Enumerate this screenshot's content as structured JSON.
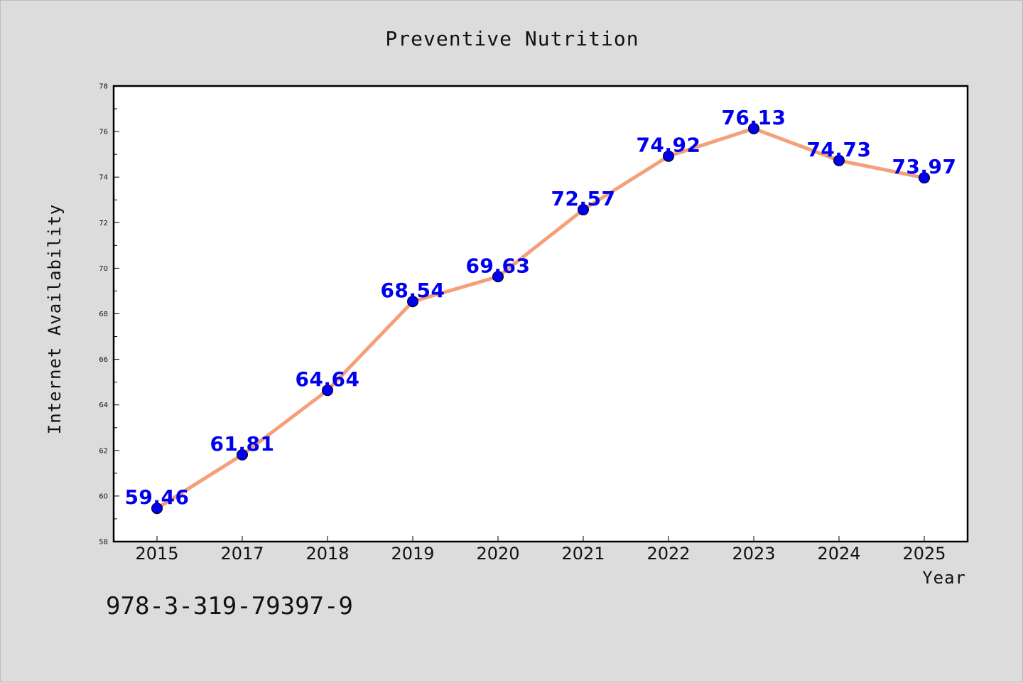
{
  "chart_data": {
    "type": "line",
    "title": "Preventive Nutrition",
    "xlabel": "Year",
    "ylabel": "Internet Availability",
    "categories": [
      "2015",
      "2017",
      "2018",
      "2019",
      "2020",
      "2021",
      "2022",
      "2023",
      "2024",
      "2025"
    ],
    "series": [
      {
        "values": [
          59.46,
          61.81,
          64.64,
          68.54,
          69.63,
          72.57,
          74.92,
          76.13,
          74.73,
          73.97
        ],
        "labels": [
          "59.46",
          "61.81",
          "64.64",
          "68.54",
          "69.63",
          "72.57",
          "74.92",
          "76.13",
          "74.73",
          "73.97"
        ]
      }
    ],
    "ylim": [
      58,
      78
    ],
    "yticks": [
      "58",
      "60",
      "62",
      "64",
      "66",
      "68",
      "70",
      "72",
      "74",
      "76",
      "78"
    ],
    "grid": false,
    "legend": "none",
    "colors": {
      "line": "#f4a07a",
      "marker": "#0000ee",
      "marker_edge": "#000000",
      "data_label": "#0000ee",
      "background": "#dcdcdc",
      "plot_background": "#ffffff"
    }
  },
  "footer": {
    "code": "978-3-319-79397-9"
  }
}
